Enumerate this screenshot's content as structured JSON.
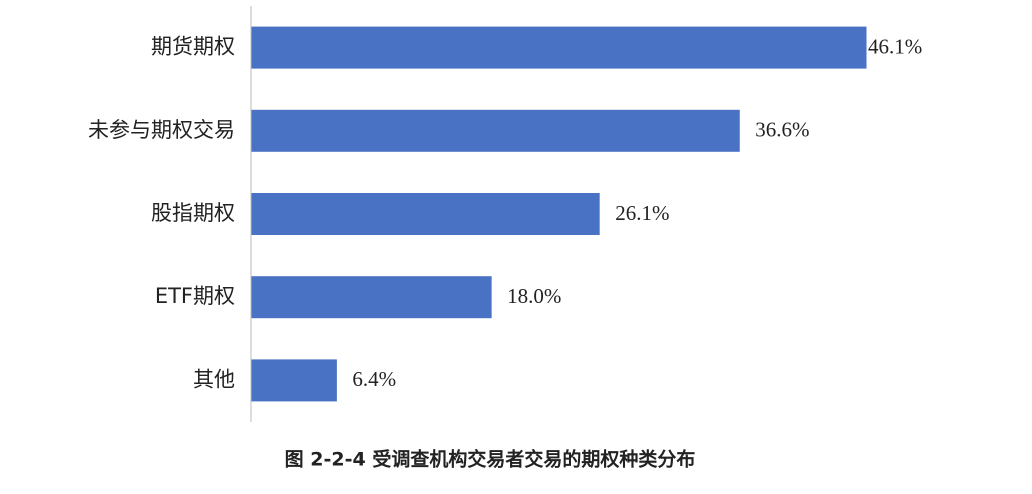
{
  "chart_data": {
    "type": "bar",
    "orientation": "horizontal",
    "title": "图 2-2-4  受调查机构交易者交易的期权种类分布",
    "categories": [
      "期货期权",
      "未参与期权交易",
      "股指期权",
      "ETF期权",
      "其他"
    ],
    "values": [
      46.1,
      36.6,
      26.1,
      18.0,
      6.4
    ],
    "value_labels": [
      "46.1%",
      "36.6%",
      "26.1%",
      "18.0%",
      "6.4%"
    ],
    "color": "#4a72c4"
  }
}
